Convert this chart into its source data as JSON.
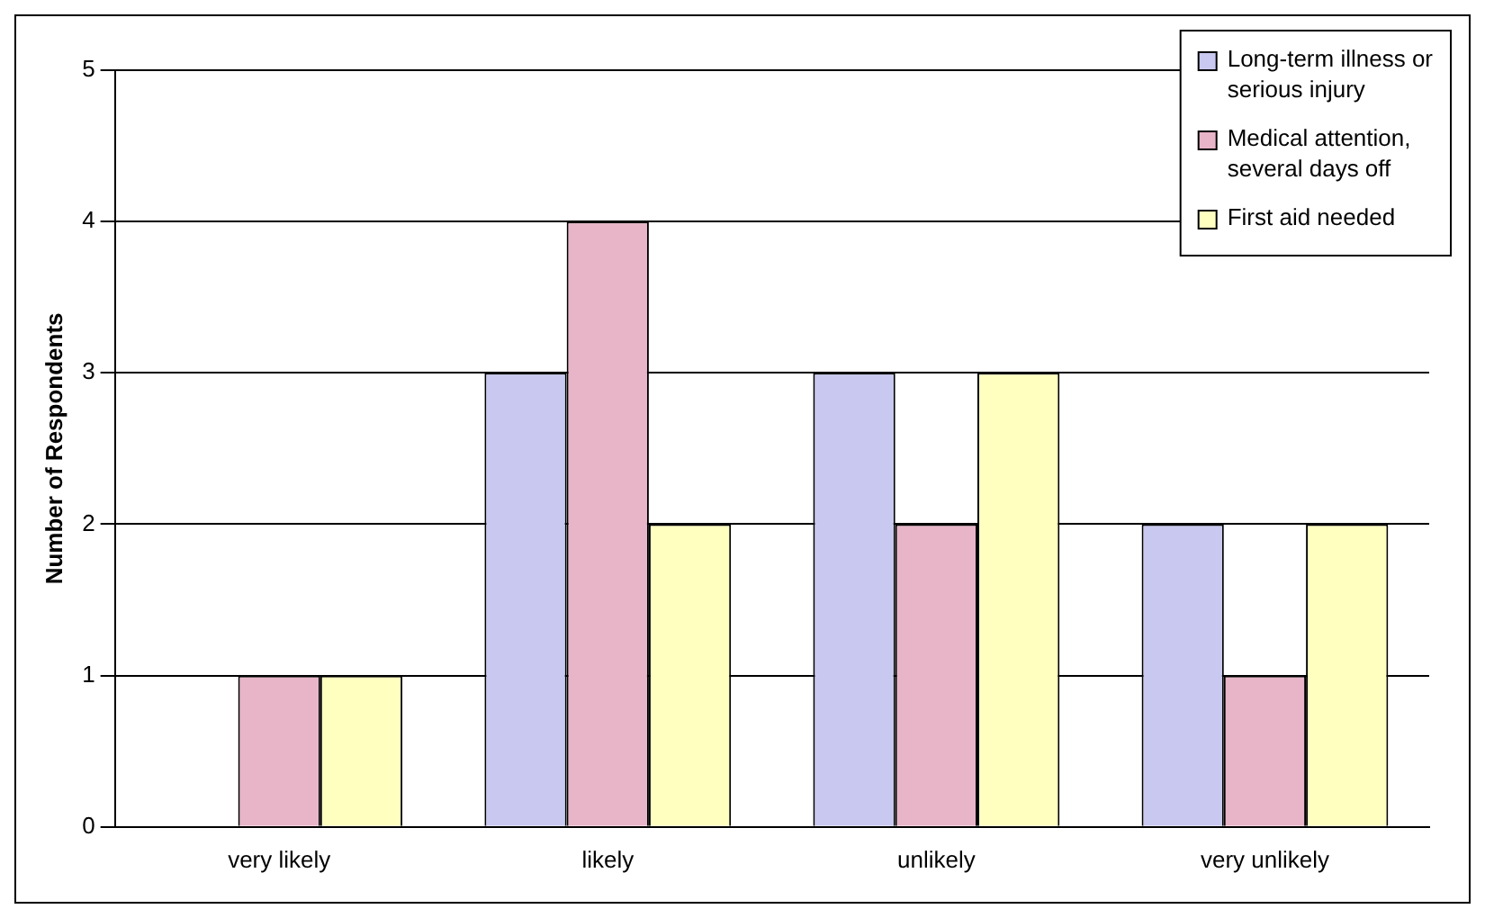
{
  "chart_data": {
    "type": "bar",
    "ylabel": "Number of Respondents",
    "categories": [
      "very likely",
      "likely",
      "unlikely",
      "very unlikely"
    ],
    "series": [
      {
        "name": "Long-term illness or serious injury",
        "color": "#c8c8f0",
        "values": [
          0,
          3,
          3,
          2
        ]
      },
      {
        "name": "Medical attention, several days off",
        "color": "#e8b4c8",
        "values": [
          1,
          4,
          2,
          1
        ]
      },
      {
        "name": "First aid needed",
        "color": "#ffffc0",
        "values": [
          1,
          2,
          3,
          2
        ]
      }
    ],
    "ylim": [
      0,
      5
    ],
    "yticks": [
      0,
      1,
      2,
      3,
      4,
      5
    ],
    "grid": "y",
    "legend": "top right"
  }
}
